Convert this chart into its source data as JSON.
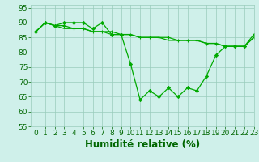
{
  "xlabel": "Humidité relative (%)",
  "xlim": [
    -0.5,
    23
  ],
  "ylim": [
    55,
    96
  ],
  "yticks": [
    55,
    60,
    65,
    70,
    75,
    80,
    85,
    90,
    95
  ],
  "xticks": [
    0,
    1,
    2,
    3,
    4,
    5,
    6,
    7,
    8,
    9,
    10,
    11,
    12,
    13,
    14,
    15,
    16,
    17,
    18,
    19,
    20,
    21,
    22,
    23
  ],
  "background_color": "#cff0ea",
  "grid_color": "#99ccbb",
  "line_color": "#00aa00",
  "line1": [
    87,
    90,
    89,
    90,
    90,
    90,
    88,
    90,
    86,
    86,
    76,
    64,
    67,
    65,
    68,
    65,
    68,
    67,
    72,
    79,
    82,
    82,
    82,
    86
  ],
  "line2": [
    87,
    90,
    89,
    89,
    88,
    88,
    87,
    87,
    87,
    86,
    86,
    85,
    85,
    85,
    85,
    84,
    84,
    84,
    83,
    83,
    82,
    82,
    82,
    85
  ],
  "line3": [
    87,
    90,
    89,
    88,
    88,
    88,
    87,
    87,
    86,
    86,
    86,
    85,
    85,
    85,
    84,
    84,
    84,
    84,
    83,
    83,
    82,
    82,
    82,
    85
  ],
  "font_color": "#006600",
  "tick_fontsize": 6.5,
  "label_fontsize": 8.5
}
